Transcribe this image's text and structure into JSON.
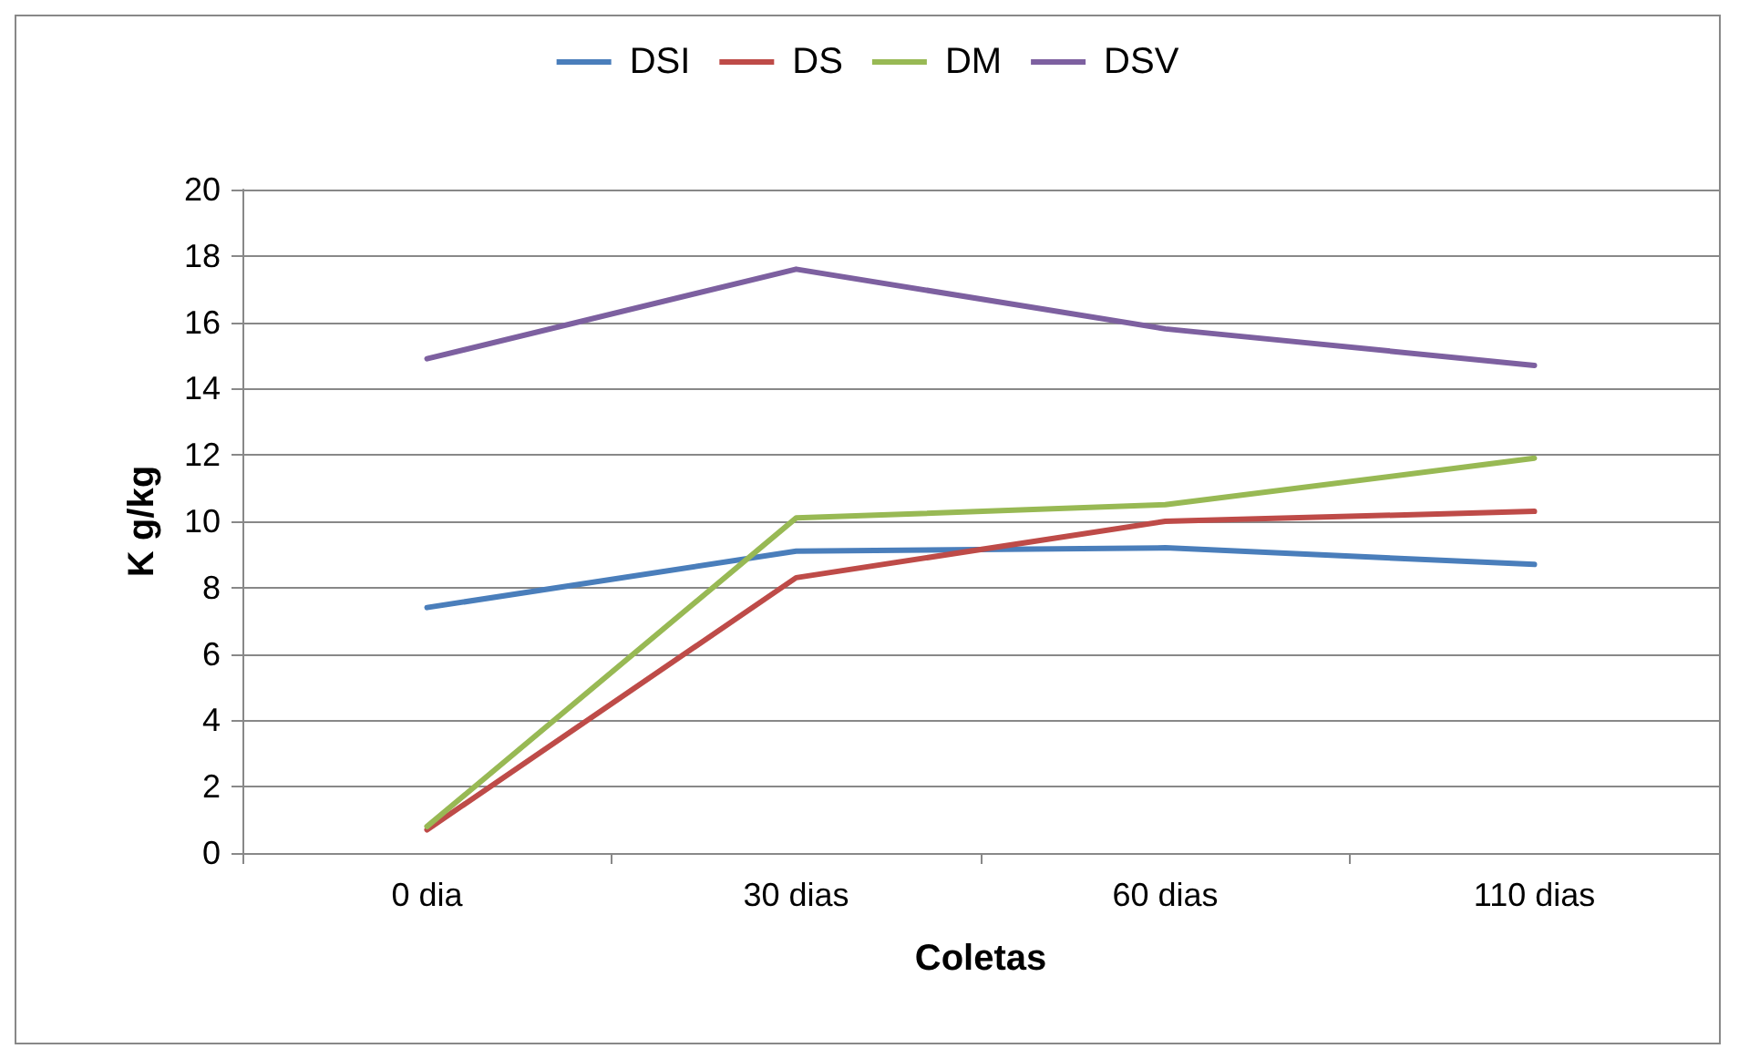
{
  "chart_data": {
    "type": "line",
    "xlabel": "Coletas",
    "ylabel": "K g/kg",
    "categories": [
      "0 dia",
      "30 dias",
      "60 dias",
      "110 dias"
    ],
    "series": [
      {
        "name": "DSI",
        "color": "#4a7ebb",
        "values": [
          7.4,
          9.1,
          9.2,
          8.7
        ]
      },
      {
        "name": "DS",
        "color": "#be4b48",
        "values": [
          0.7,
          8.3,
          10.0,
          10.3
        ]
      },
      {
        "name": "DM",
        "color": "#98b954",
        "values": [
          0.8,
          10.1,
          10.5,
          11.9
        ]
      },
      {
        "name": "DSV",
        "color": "#7d60a0",
        "values": [
          14.9,
          17.6,
          15.8,
          14.7
        ]
      }
    ],
    "ylim": [
      0,
      20
    ],
    "yticks": [
      0,
      2,
      4,
      6,
      8,
      10,
      12,
      14,
      16,
      18,
      20
    ],
    "grid": "y",
    "legend": "top",
    "marker": "none",
    "line_style": "solid"
  }
}
